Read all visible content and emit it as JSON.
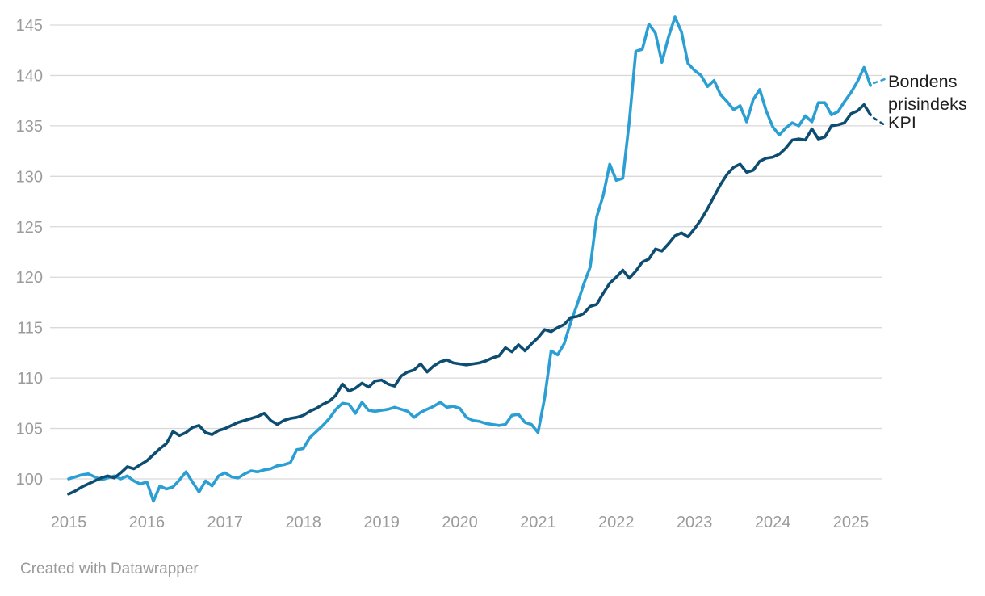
{
  "chart": {
    "footer": "Created with Datawrapper",
    "colors": {
      "bondens_line": "#2B9FD3",
      "kpi_line": "#0D4D72",
      "grid": "#d9d9d9",
      "axis_text": "#9b9b9b",
      "series_label_text": "#1f1f1f",
      "background": "#ffffff"
    }
  },
  "chart_data": {
    "type": "line",
    "title": "",
    "xlabel": "",
    "ylabel": "",
    "x_start": "2015-01",
    "x_end": "2025-04",
    "x_tick_labels": [
      "2015",
      "2016",
      "2017",
      "2018",
      "2019",
      "2020",
      "2021",
      "2022",
      "2023",
      "2024",
      "2025"
    ],
    "y_ticks": [
      100,
      105,
      110,
      115,
      120,
      125,
      130,
      135,
      140,
      145
    ],
    "ylim": [
      97.5,
      146
    ],
    "grid": "horizontal",
    "legend_position": "right-end-of-lines",
    "series": [
      {
        "name": "Bondens prisindeks",
        "color": "#2B9FD3",
        "values": [
          100.0,
          100.2,
          100.4,
          100.5,
          100.2,
          99.9,
          100.1,
          100.3,
          100.0,
          100.3,
          99.8,
          99.5,
          99.7,
          97.8,
          99.3,
          99.0,
          99.2,
          99.9,
          100.7,
          99.7,
          98.7,
          99.8,
          99.3,
          100.3,
          100.6,
          100.2,
          100.1,
          100.5,
          100.8,
          100.7,
          100.9,
          101.0,
          101.3,
          101.4,
          101.6,
          102.9,
          103.0,
          104.1,
          104.7,
          105.3,
          106.0,
          106.9,
          107.5,
          107.4,
          106.5,
          107.6,
          106.8,
          106.7,
          106.8,
          106.9,
          107.1,
          106.9,
          106.7,
          106.1,
          106.6,
          106.9,
          107.2,
          107.6,
          107.1,
          107.2,
          107.0,
          106.1,
          105.8,
          105.7,
          105.5,
          105.4,
          105.3,
          105.4,
          106.3,
          106.4,
          105.6,
          105.4,
          104.6,
          108.0,
          112.7,
          112.3,
          113.4,
          115.5,
          117.3,
          119.3,
          121.0,
          126.0,
          128.1,
          131.2,
          129.6,
          129.8,
          135.5,
          142.4,
          142.6,
          145.1,
          144.2,
          141.3,
          143.8,
          145.8,
          144.3,
          141.2,
          140.5,
          140.0,
          138.9,
          139.5,
          138.1,
          137.4,
          136.6,
          137.0,
          135.4,
          137.6,
          138.6,
          136.5,
          134.9,
          134.1,
          134.8,
          135.3,
          135.0,
          136.0,
          135.4,
          137.3,
          137.3,
          136.1,
          136.4,
          137.4,
          138.3,
          139.4,
          140.8,
          139.0
        ]
      },
      {
        "name": "KPI",
        "color": "#0D4D72",
        "values": [
          98.5,
          98.8,
          99.2,
          99.5,
          99.8,
          100.1,
          100.3,
          100.1,
          100.6,
          101.2,
          101.0,
          101.4,
          101.8,
          102.4,
          103.0,
          103.5,
          104.7,
          104.3,
          104.6,
          105.1,
          105.3,
          104.6,
          104.4,
          104.8,
          105.0,
          105.3,
          105.6,
          105.8,
          106.0,
          106.2,
          106.5,
          105.8,
          105.4,
          105.8,
          106.0,
          106.1,
          106.3,
          106.7,
          107.0,
          107.4,
          107.7,
          108.3,
          109.4,
          108.7,
          109.0,
          109.5,
          109.1,
          109.7,
          109.8,
          109.4,
          109.2,
          110.2,
          110.6,
          110.8,
          111.4,
          110.6,
          111.2,
          111.6,
          111.8,
          111.5,
          111.4,
          111.3,
          111.4,
          111.5,
          111.7,
          112.0,
          112.2,
          113.0,
          112.6,
          113.3,
          112.7,
          113.4,
          114.0,
          114.8,
          114.6,
          115.0,
          115.3,
          116.0,
          116.1,
          116.4,
          117.1,
          117.3,
          118.4,
          119.4,
          120.0,
          120.7,
          119.9,
          120.6,
          121.5,
          121.8,
          122.8,
          122.6,
          123.3,
          124.1,
          124.4,
          124.0,
          124.8,
          125.7,
          126.8,
          128.0,
          129.2,
          130.2,
          130.9,
          131.2,
          130.4,
          130.6,
          131.5,
          131.8,
          131.9,
          132.2,
          132.8,
          133.6,
          133.7,
          133.6,
          134.7,
          133.7,
          133.9,
          135.0,
          135.1,
          135.3,
          136.2,
          136.5,
          137.1,
          136.1
        ]
      }
    ]
  }
}
